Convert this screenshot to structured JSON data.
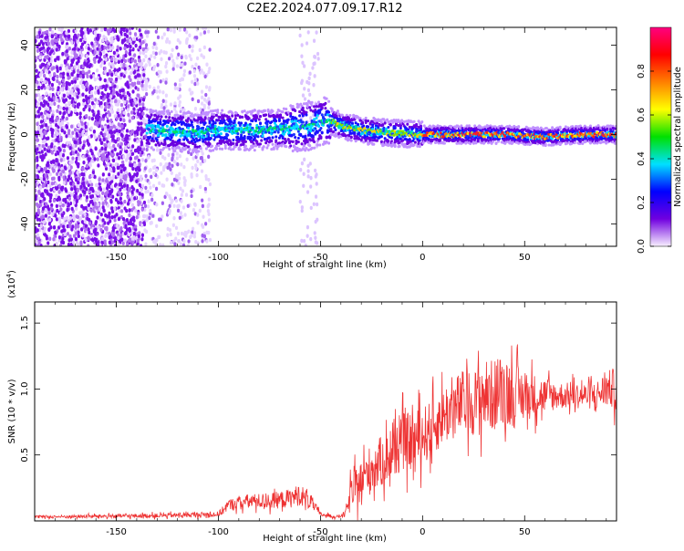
{
  "figure_title": "C2E2.2024.077.09.17.R12",
  "chart_data": [
    {
      "type": "heatmap",
      "title": "",
      "xlabel": "Height of straight line (km)",
      "ylabel": "Frequency (Hz)",
      "xlim": [
        -190,
        95
      ],
      "ylim": [
        -50,
        48
      ],
      "xticks": [
        -150,
        -100,
        -50,
        0,
        50
      ],
      "yticks": [
        -40,
        -20,
        0,
        20,
        40
      ],
      "grid": false,
      "colorbar": {
        "label": "Normalized spectral amplitude",
        "range": [
          0.0,
          1.0
        ],
        "ticks": [
          0.0,
          0.2,
          0.4,
          0.6,
          0.8
        ],
        "tick_labels": [
          "0.0",
          "0.2",
          "0.4",
          "0.6",
          "0.8"
        ],
        "colormap": "rainbow",
        "colors": [
          "#f8f0ff",
          "#7000e0",
          "#0000ff",
          "#00e0ff",
          "#00e000",
          "#ffff00",
          "#ff8000",
          "#ff0000",
          "#ff0080"
        ]
      },
      "ridge": [
        {
          "x": -190,
          "y": 3
        },
        {
          "x": -150,
          "y": 3
        },
        {
          "x": -130,
          "y": 2
        },
        {
          "x": -110,
          "y": 1
        },
        {
          "x": -100,
          "y": 2
        },
        {
          "x": -80,
          "y": 2
        },
        {
          "x": -65,
          "y": 3
        },
        {
          "x": -55,
          "y": 4
        },
        {
          "x": -50,
          "y": 6
        },
        {
          "x": -45,
          "y": 6
        },
        {
          "x": -40,
          "y": 4
        },
        {
          "x": -30,
          "y": 2
        },
        {
          "x": -20,
          "y": 1
        },
        {
          "x": -10,
          "y": 0.5
        },
        {
          "x": 0,
          "y": 0
        },
        {
          "x": 20,
          "y": 0
        },
        {
          "x": 40,
          "y": 0
        },
        {
          "x": 60,
          "y": -1
        },
        {
          "x": 80,
          "y": 0
        },
        {
          "x": 95,
          "y": 0
        }
      ],
      "noise_regions": [
        {
          "x_from": -190,
          "x_to": -136,
          "level": "high"
        },
        {
          "x_from": -136,
          "x_to": -104,
          "level": "low"
        },
        {
          "x_from": -60,
          "x_to": -51,
          "level": "sparse"
        }
      ]
    },
    {
      "type": "line",
      "title": "",
      "xlabel": "Height of straight line (km)",
      "ylabel": "SNR (10 * v/v)",
      "y_multiplier": "(x10⁴)",
      "y_multiplier_base": "(x10",
      "y_multiplier_exp": "4",
      "y_multiplier_close": ")",
      "xlim": [
        -190,
        95
      ],
      "ylim": [
        0,
        16600
      ],
      "xticks": [
        -150,
        -100,
        -50,
        0,
        50
      ],
      "yticks": [
        5000,
        10000,
        15000
      ],
      "ytick_labels": [
        "0.5",
        "1.0",
        "1.5"
      ],
      "grid": false,
      "color": "#ee3333",
      "series": [
        {
          "x": [
            -190,
            -130,
            -100,
            -95,
            -85,
            -75,
            -65,
            -60,
            -55,
            -50,
            -42,
            -38,
            -35,
            -30,
            -25,
            -20,
            -15,
            -10,
            -5,
            0,
            5,
            10,
            15,
            20,
            25,
            30,
            35,
            40,
            45,
            50,
            55,
            60,
            65,
            70,
            75,
            80,
            85,
            90,
            95
          ],
          "values": [
            300,
            400,
            500,
            1200,
            1500,
            1500,
            1700,
            2000,
            1500,
            500,
            300,
            500,
            2000,
            3000,
            4000,
            4500,
            5000,
            6000,
            6000,
            6500,
            7000,
            8000,
            8500,
            9000,
            9000,
            9500,
            9500,
            10000,
            9500,
            9500,
            9500,
            9500,
            9500,
            9500,
            9500,
            9500,
            9500,
            10000,
            10000
          ],
          "spread": [
            200,
            300,
            400,
            800,
            1000,
            1100,
            1300,
            1500,
            1100,
            300,
            200,
            400,
            2500,
            3000,
            3500,
            3500,
            3500,
            4000,
            4000,
            4000,
            4000,
            4000,
            4500,
            4500,
            4500,
            5000,
            5000,
            5000,
            4500,
            3500,
            3000,
            2500,
            2000,
            1800,
            1800,
            1800,
            2000,
            2500,
            3000
          ]
        }
      ]
    }
  ]
}
